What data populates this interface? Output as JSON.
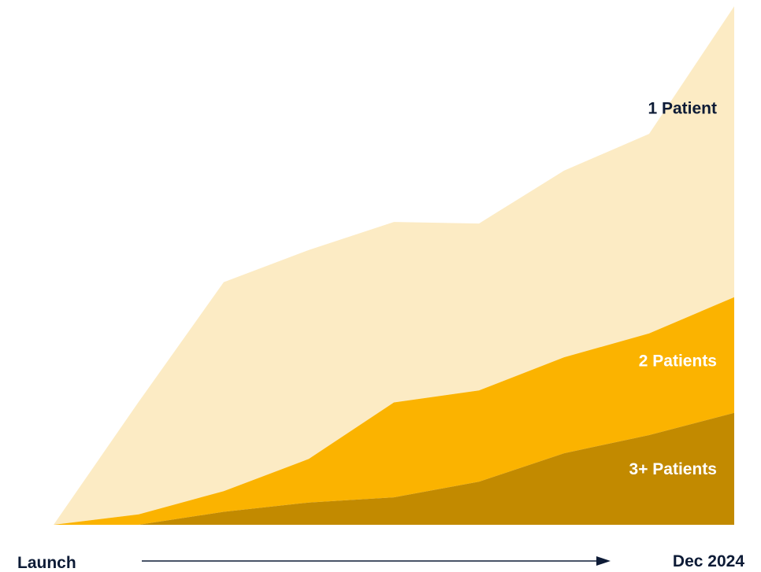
{
  "chart_data": {
    "type": "area",
    "stacked": true,
    "x": [
      0,
      1,
      2,
      3,
      4,
      5,
      6,
      7,
      8
    ],
    "xlim": [
      0,
      8
    ],
    "ylim": [
      0,
      100
    ],
    "x_axis": {
      "start_label": "Launch",
      "end_label": "Dec 2024",
      "arrow": true
    },
    "series": [
      {
        "name": "3+ Patients",
        "color": "#c28a00",
        "label_color": "#ffffff",
        "values": [
          0,
          0,
          2.5,
          4.3,
          5.3,
          8.3,
          13.8,
          17.3,
          21.6
        ]
      },
      {
        "name": "2 Patients",
        "color": "#fbb300",
        "label_color": "#ffffff",
        "values": [
          0,
          2.0,
          4.0,
          8.4,
          18.3,
          17.6,
          18.5,
          19.6,
          22.3
        ]
      },
      {
        "name": "1 Patient",
        "color": "#fcebc4",
        "label_color": "#0d1b36",
        "values": [
          0,
          21.7,
          40.3,
          40.3,
          34.8,
          32.2,
          36.0,
          38.5,
          56.1
        ]
      }
    ],
    "totals": [
      0,
      23.7,
      46.8,
      53.0,
      58.4,
      58.1,
      68.3,
      75.4,
      100
    ],
    "grid": false,
    "legend": "inline-right"
  },
  "colors": {
    "axis_text": "#0d1b36",
    "arrow": "#0d1b36",
    "background": "#ffffff"
  }
}
